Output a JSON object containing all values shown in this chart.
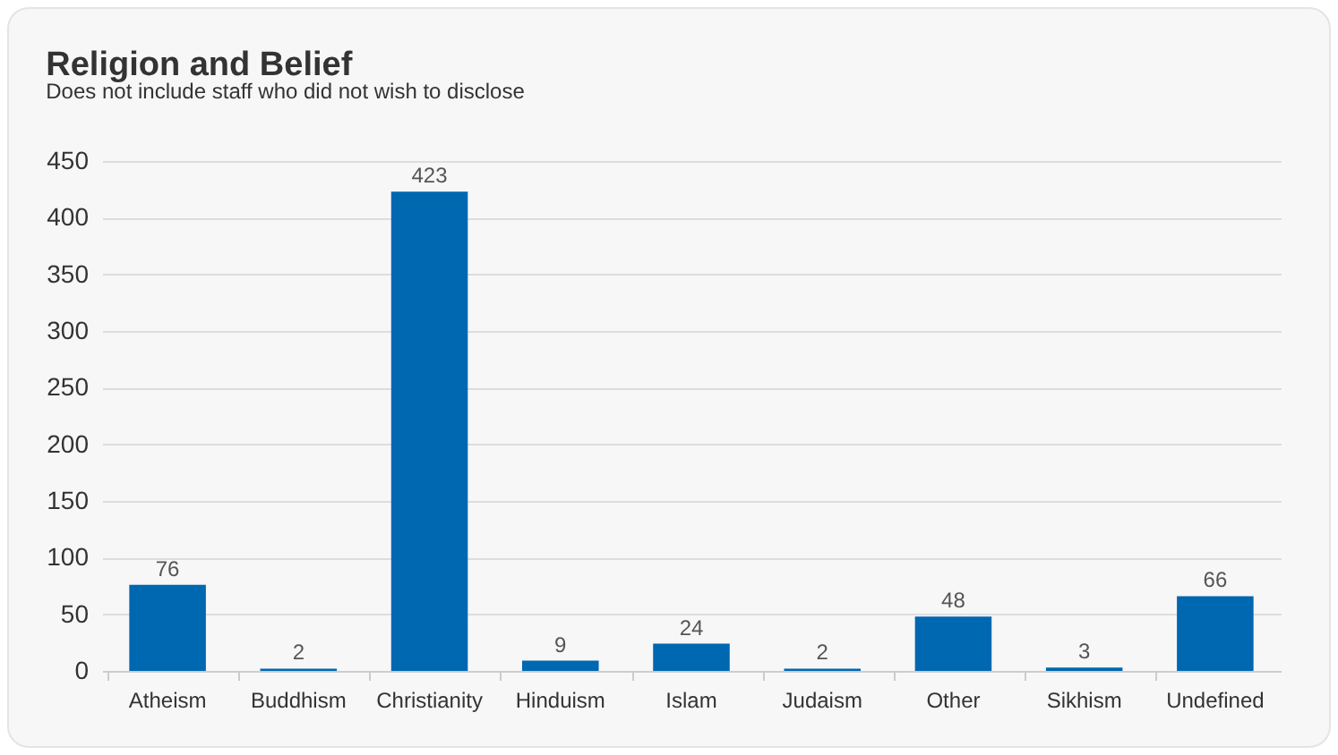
{
  "chart_data": {
    "type": "bar",
    "title": "Religion and Belief",
    "subtitle": "Does not include staff who did not wish to disclose",
    "categories": [
      "Atheism",
      "Buddhism",
      "Christianity",
      "Hinduism",
      "Islam",
      "Judaism",
      "Other",
      "Sikhism",
      "Undefined"
    ],
    "values": [
      76,
      2,
      423,
      9,
      24,
      2,
      48,
      3,
      66
    ],
    "color": "#0067b1",
    "ylim": [
      0,
      450
    ],
    "yticks": [
      0,
      50,
      100,
      150,
      200,
      250,
      300,
      350,
      400,
      450
    ],
    "grid": "y",
    "data_labels": true
  }
}
